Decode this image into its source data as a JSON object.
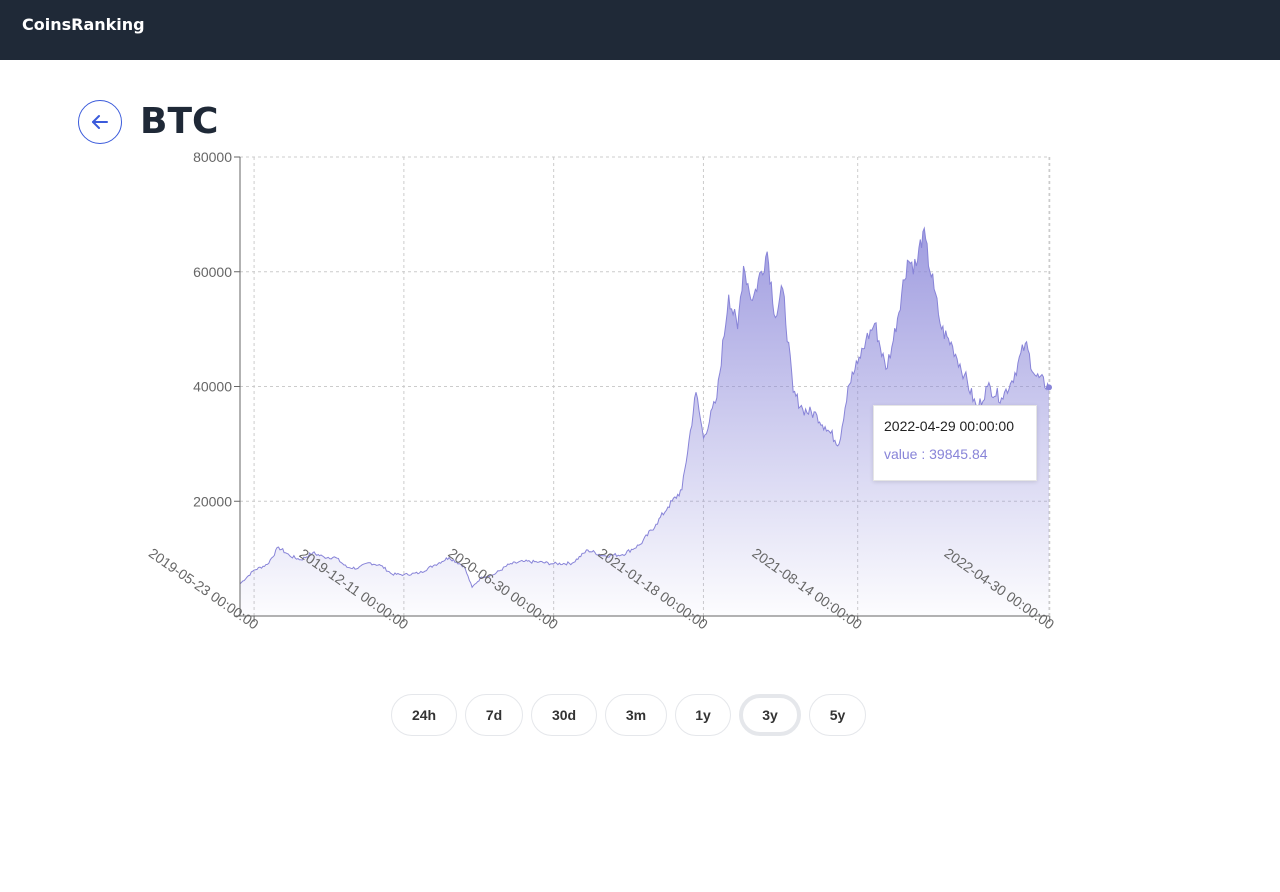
{
  "header": {
    "brand": "CoinsRanking"
  },
  "page": {
    "title": "BTC"
  },
  "tooltip": {
    "date": "2022-04-29 00:00:00",
    "value_label": "value : 39845.84"
  },
  "ranges": [
    {
      "label": "24h",
      "active": false
    },
    {
      "label": "7d",
      "active": false
    },
    {
      "label": "30d",
      "active": false
    },
    {
      "label": "3m",
      "active": false
    },
    {
      "label": "1y",
      "active": false
    },
    {
      "label": "3y",
      "active": true
    },
    {
      "label": "5y",
      "active": false
    }
  ],
  "colors": {
    "series": "#8884d8",
    "header_bg": "#1f2937",
    "back_icon": "#3b5bdb"
  },
  "chart_data": {
    "type": "area",
    "ylim": [
      0,
      80000
    ],
    "yticks": [
      "0",
      "20000",
      "40000",
      "60000",
      "80000"
    ],
    "xticks": [
      "2019-05-23 00:00:00",
      "2019-12-11 00:00:00",
      "2020-06-30 00:00:00",
      "2021-01-18 00:00:00",
      "2021-08-14 00:00:00",
      "2022-04-30 00:00:00"
    ],
    "grid": true,
    "series": [
      {
        "x": [
          "2019-05-04",
          "2019-05-23",
          "2019-06-10",
          "2019-06-25",
          "2019-07-10",
          "2019-07-25",
          "2019-08-10",
          "2019-08-25",
          "2019-09-10",
          "2019-09-25",
          "2019-10-10",
          "2019-10-25",
          "2019-11-10",
          "2019-11-25",
          "2019-12-11",
          "2020-01-01",
          "2020-01-20",
          "2020-02-10",
          "2020-03-01",
          "2020-03-12",
          "2020-03-25",
          "2020-04-10",
          "2020-05-01",
          "2020-05-20",
          "2020-06-10",
          "2020-06-30",
          "2020-07-25",
          "2020-08-15",
          "2020-09-05",
          "2020-10-01",
          "2020-10-25",
          "2020-11-15",
          "2020-12-01",
          "2020-12-20",
          "2021-01-08",
          "2021-01-18",
          "2021-02-05",
          "2021-02-21",
          "2021-03-05",
          "2021-03-13",
          "2021-03-25",
          "2021-04-14",
          "2021-04-25",
          "2021-05-05",
          "2021-05-19",
          "2021-06-01",
          "2021-06-20",
          "2021-07-01",
          "2021-07-20",
          "2021-08-01",
          "2021-08-14",
          "2021-08-25",
          "2021-09-06",
          "2021-09-21",
          "2021-10-01",
          "2021-10-20",
          "2021-11-01",
          "2021-11-10",
          "2021-11-25",
          "2021-12-05",
          "2021-12-20",
          "2022-01-05",
          "2022-01-22",
          "2022-02-05",
          "2022-02-24",
          "2022-03-10",
          "2022-03-28",
          "2022-04-10",
          "2022-04-29"
        ],
        "values": [
          5600,
          8000,
          9000,
          12000,
          10500,
          9800,
          11000,
          10300,
          10200,
          8500,
          8300,
          9300,
          8800,
          7300,
          7200,
          7500,
          8800,
          10200,
          8700,
          5000,
          6800,
          7200,
          9000,
          9500,
          9400,
          9100,
          9200,
          11500,
          10500,
          10700,
          12500,
          16000,
          19000,
          22000,
          39000,
          31000,
          38000,
          56000,
          50000,
          61000,
          55000,
          63500,
          52000,
          57000,
          39000,
          36000,
          35000,
          33000,
          30000,
          40000,
          44000,
          48000,
          51000,
          43000,
          48000,
          62000,
          61000,
          67000,
          57000,
          50000,
          47000,
          42000,
          36000,
          40000,
          38000,
          41000,
          47500,
          42000,
          39845.84
        ]
      }
    ]
  }
}
